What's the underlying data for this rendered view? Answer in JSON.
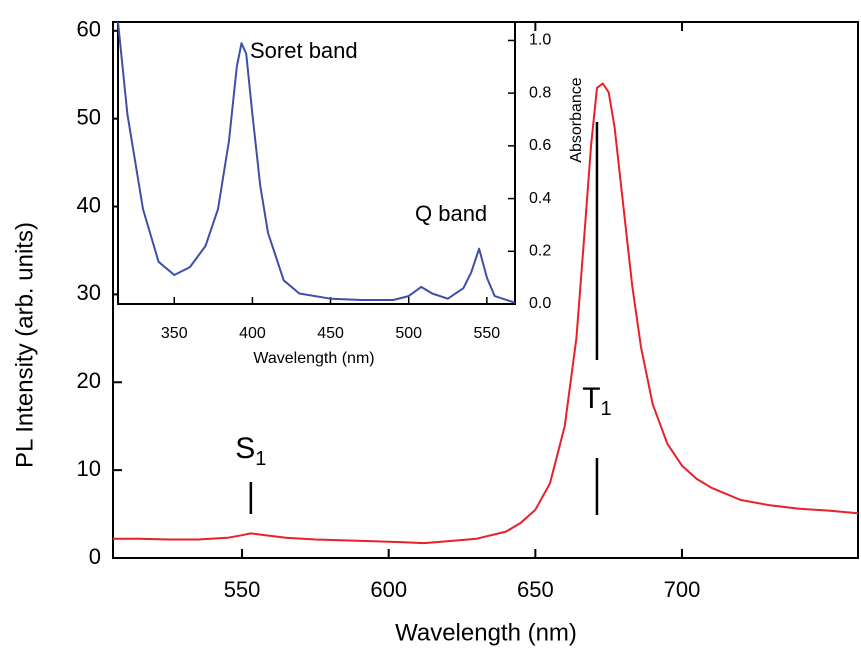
{
  "chart_data": [
    {
      "type": "line",
      "xlabel": "Wavelength (nm)",
      "ylabel": "PL Intensity (arb. units)",
      "xlim": [
        506,
        760
      ],
      "ylim": [
        0,
        61
      ],
      "xticks": [
        550,
        600,
        650,
        700
      ],
      "yticks": [
        0,
        10,
        20,
        30,
        40,
        50,
        60
      ],
      "annotations": [
        {
          "text": "S",
          "subscript": "1",
          "x": 553
        },
        {
          "text": "T",
          "subscript": "1",
          "x": 671
        }
      ],
      "series": [
        {
          "color": "#e8202a",
          "x": [
            506,
            515,
            525,
            535,
            545,
            550,
            553,
            558,
            565,
            575,
            585,
            595,
            605,
            612,
            620,
            630,
            640,
            645,
            650,
            655,
            660,
            664,
            667,
            669,
            671,
            673,
            675,
            677,
            680,
            683,
            686,
            690,
            695,
            700,
            705,
            710,
            720,
            730,
            740,
            750,
            760
          ],
          "values": [
            2.2,
            2.2,
            2.1,
            2.1,
            2.3,
            2.6,
            2.8,
            2.6,
            2.3,
            2.1,
            2.0,
            1.9,
            1.8,
            1.7,
            1.9,
            2.2,
            3.0,
            4.0,
            5.5,
            8.5,
            15,
            25,
            38,
            47,
            53.5,
            54,
            53,
            49,
            40,
            31,
            24,
            17.5,
            13,
            10.5,
            9,
            8,
            6.6,
            6,
            5.6,
            5.4,
            5.1
          ]
        }
      ]
    },
    {
      "type": "line",
      "xlabel": "Wavelength (nm)",
      "ylabel": "Absorbance",
      "xlim": [
        314,
        568
      ],
      "ylim": [
        0,
        1.07
      ],
      "xticks": [
        350,
        400,
        450,
        500,
        550
      ],
      "yticks": [
        {
          "value": 0,
          "label": "0.0"
        },
        0.2,
        0.4,
        0.6,
        0.8,
        {
          "value": 1,
          "label": "1.0"
        }
      ],
      "annotations": [
        "Soret band",
        "Q band"
      ],
      "series": [
        {
          "color": "#3e4fa8",
          "x": [
            314,
            320,
            330,
            340,
            350,
            360,
            370,
            378,
            385,
            390,
            393,
            396,
            400,
            405,
            410,
            420,
            430,
            450,
            470,
            490,
            500,
            508,
            515,
            525,
            535,
            540,
            545,
            550,
            555,
            568
          ],
          "values": [
            1.07,
            0.72,
            0.36,
            0.16,
            0.11,
            0.14,
            0.22,
            0.36,
            0.62,
            0.9,
            0.99,
            0.95,
            0.72,
            0.45,
            0.27,
            0.09,
            0.04,
            0.02,
            0.015,
            0.015,
            0.03,
            0.065,
            0.04,
            0.02,
            0.06,
            0.12,
            0.21,
            0.1,
            0.03,
            0.005
          ]
        }
      ]
    }
  ]
}
